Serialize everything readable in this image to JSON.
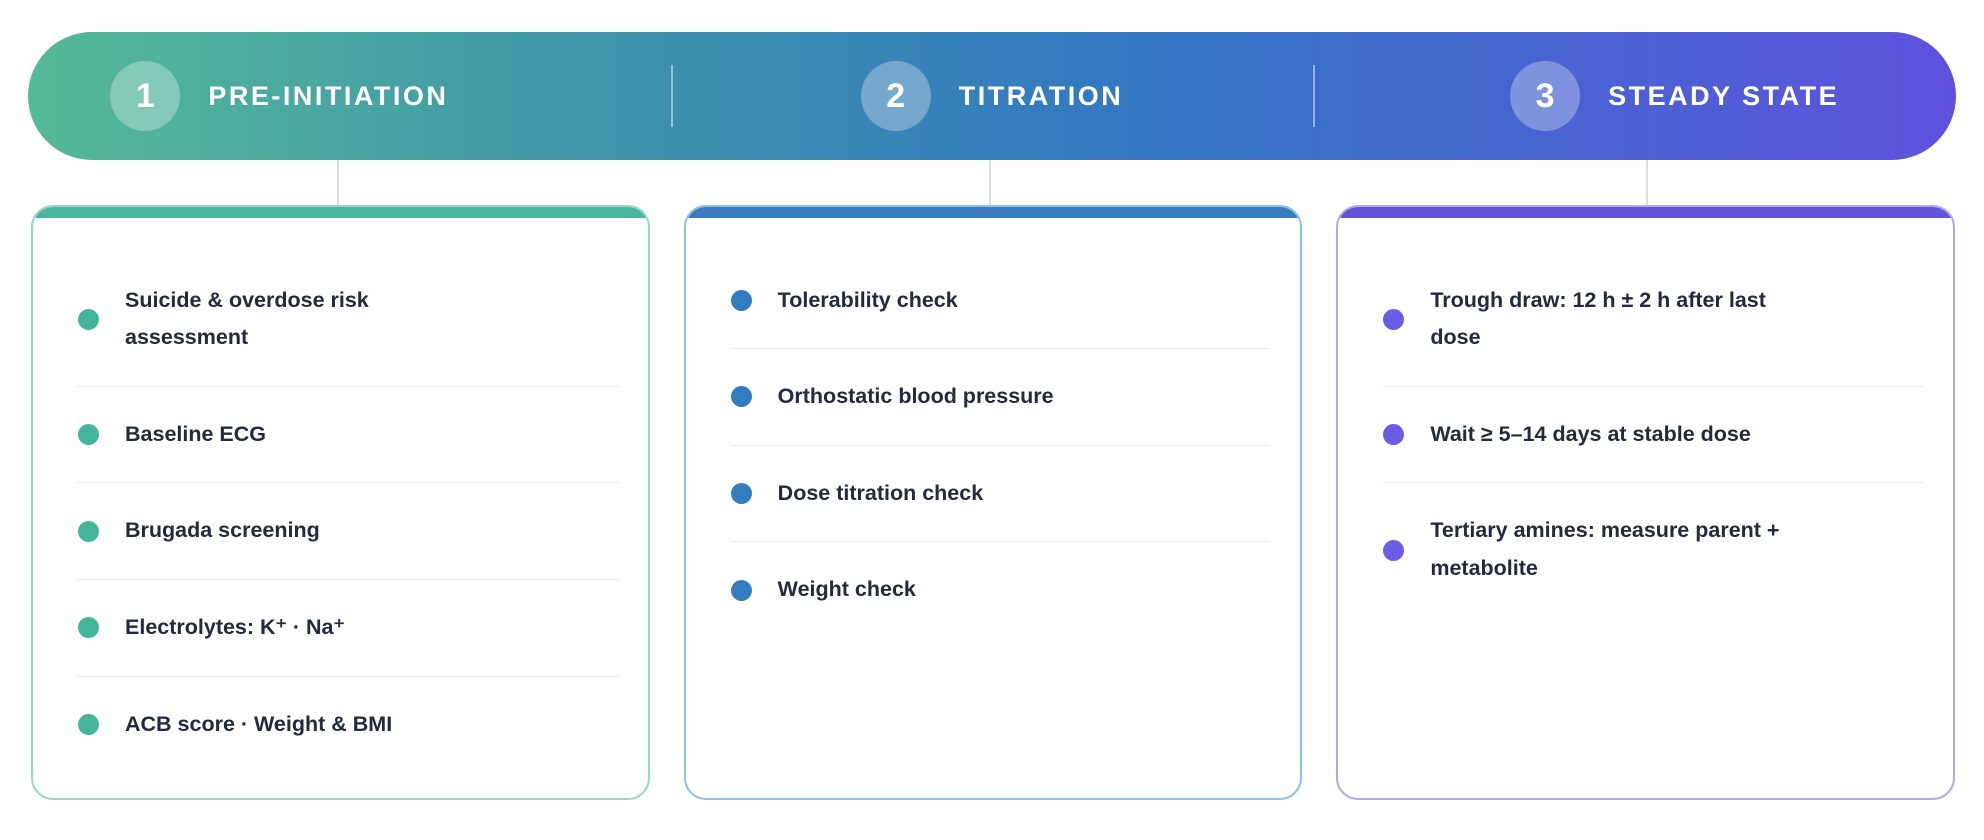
{
  "header": {
    "gradient_colors": [
      "#55ba97",
      "#3e94aa",
      "#3376c4",
      "#5e52dd"
    ],
    "phases": [
      {
        "number": "1",
        "label": "PRE-INITIATION"
      },
      {
        "number": "2",
        "label": "TITRATION"
      },
      {
        "number": "3",
        "label": "STEADY STATE"
      }
    ]
  },
  "cards": [
    {
      "id": "pre-initiation",
      "accent_color": "#4cb5a0",
      "border_color": "#96d7c6",
      "bullet_color": "#44b49d",
      "items": [
        "Suicide & overdose risk\nassessment",
        "Baseline ECG",
        "Brugada screening",
        "Electrolytes: K⁺ · Na⁺",
        "ACB score · Weight & BMI"
      ]
    },
    {
      "id": "titration",
      "accent_color": "#3a7cbb",
      "border_color": "#8fc0e6",
      "bullet_color": "#327dc0",
      "items": [
        "Tolerability check",
        "Orthostatic blood pressure",
        "Dose titration check",
        "Weight check"
      ]
    },
    {
      "id": "steady-state",
      "accent_color": "#6154d9",
      "border_color": "#b2a8ea",
      "bullet_color": "#6c5be5",
      "items": [
        "Trough draw: 12 h ± 2 h after last\ndose",
        "Wait ≥ 5–14 days at stable dose",
        "Tertiary amines: measure parent +\nmetabolite"
      ]
    }
  ],
  "connector_color": "#dcdde3",
  "item_divider_color": "#eaeaef",
  "text_color": "#232a3e"
}
